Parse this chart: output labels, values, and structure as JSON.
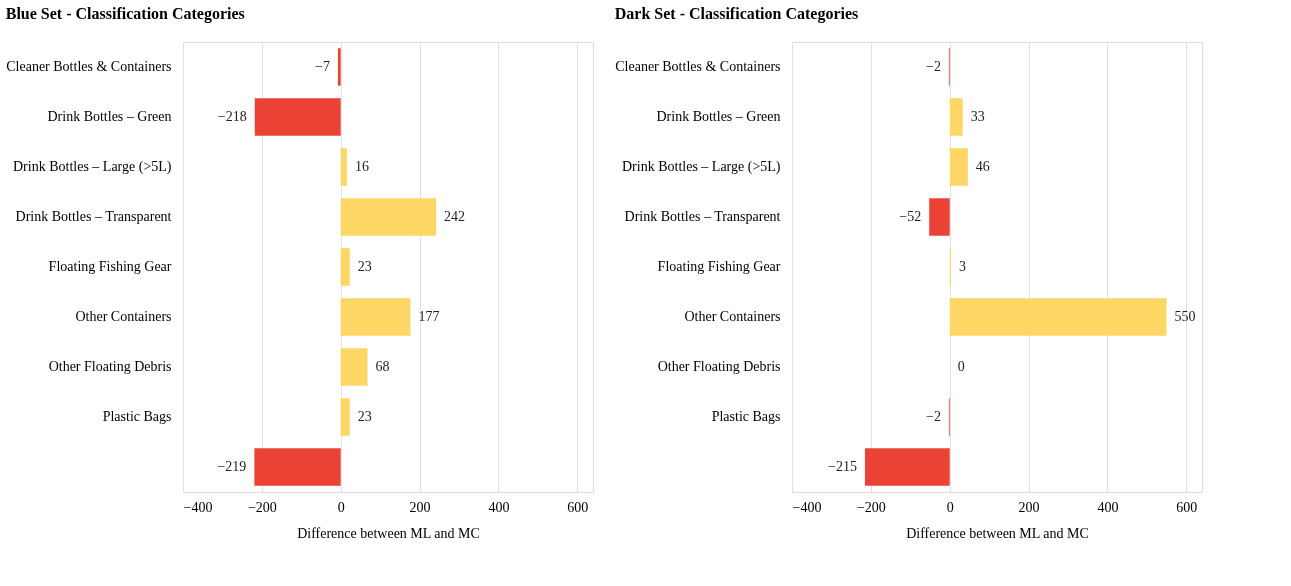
{
  "chart_data": [
    {
      "type": "bar",
      "orientation": "horizontal",
      "title": "Blue Set - Classification Categories",
      "xlabel": "Difference between ML and MC",
      "categories": [
        "Cleaner Bottles & Containers",
        "Drink Bottles – Green",
        "Drink Bottles – Large (>5L)",
        "Drink Bottles – Transparent",
        "Floating Fishing Gear",
        "Other Containers",
        "Other Floating Debris",
        "Plastic Bags",
        null
      ],
      "values": [
        -7,
        -218,
        16,
        242,
        23,
        177,
        68,
        23,
        -219
      ],
      "colors": [
        "#ea4335",
        "#ea4335",
        "#fdd666",
        "#fdd666",
        "#fdd666",
        "#fdd666",
        "#fdd666",
        "#fdd666",
        "#ea4335"
      ],
      "xlim": [
        -400,
        640
      ],
      "xticks": [
        -400,
        -200,
        0,
        200,
        400,
        600
      ],
      "grid": "x",
      "data_labels": true
    },
    {
      "type": "bar",
      "orientation": "horizontal",
      "title": "Dark Set - Classification Categories",
      "xlabel": "Difference between ML and MC",
      "categories": [
        "Cleaner Bottles & Containers",
        "Drink Bottles – Green",
        "Drink Bottles – Large (>5L)",
        "Drink Bottles – Transparent",
        "Floating Fishing Gear",
        "Other Containers",
        "Other Floating Debris",
        "Plastic Bags",
        null
      ],
      "values": [
        -2,
        33,
        46,
        -52,
        3,
        550,
        0,
        -2,
        -215
      ],
      "colors": [
        "#ea4335",
        "#fdd666",
        "#fdd666",
        "#ea4335",
        "#fdd666",
        "#fdd666",
        "#fdd666",
        "#ea4335",
        "#ea4335"
      ],
      "xlim": [
        -400,
        640
      ],
      "xticks": [
        -400,
        -200,
        0,
        200,
        400,
        600
      ],
      "grid": "x",
      "data_labels": true
    }
  ]
}
